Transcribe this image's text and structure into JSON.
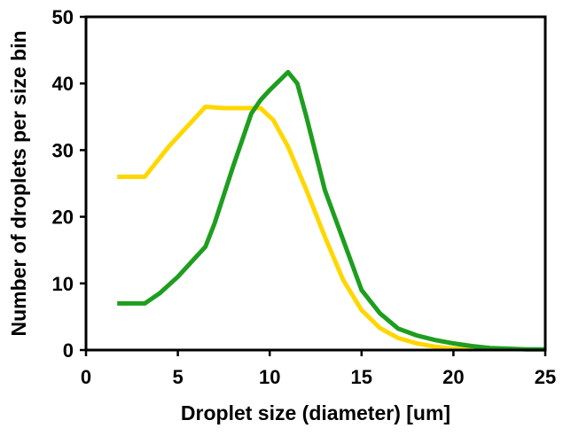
{
  "chart_data": {
    "type": "line",
    "title": "",
    "xlabel": "Droplet size (diameter) [um]",
    "ylabel": "Number of droplets per size bin",
    "xlim": [
      0,
      25
    ],
    "ylim": [
      0,
      50
    ],
    "xticks": [
      0,
      5,
      10,
      15,
      20,
      25
    ],
    "yticks": [
      0,
      10,
      20,
      30,
      40,
      50
    ],
    "grid": false,
    "legend": "none",
    "series": [
      {
        "color": "#FFD700",
        "x": [
          1.7,
          3.2,
          4.5,
          6.5,
          7.5,
          8.5,
          9.5,
          10.2,
          11.0,
          12.0,
          13.0,
          14.0,
          15.0,
          16.0,
          17.0,
          18.0,
          19.0,
          20.0,
          21.0
        ],
        "y": [
          26,
          26,
          30.5,
          36.5,
          36.3,
          36.3,
          36.3,
          34.5,
          30.5,
          24,
          17,
          10.5,
          6,
          3.3,
          1.8,
          1.0,
          0.5,
          0.2,
          0.1
        ]
      },
      {
        "color": "#1E9E1E",
        "x": [
          1.7,
          3.2,
          4.0,
          5.0,
          6.0,
          6.5,
          7.0,
          8.0,
          9.0,
          9.5,
          10.0,
          11.0,
          11.5,
          12.0,
          13.0,
          14.0,
          15.0,
          16.0,
          17.0,
          18.0,
          19.0,
          20.0,
          21.0,
          22.0,
          23.0,
          24.0,
          25.0
        ],
        "y": [
          7,
          7,
          8.5,
          11,
          14,
          15.5,
          19,
          27.5,
          35.5,
          37.5,
          39,
          41.7,
          40,
          35,
          24,
          16.5,
          9,
          5.5,
          3.2,
          2.2,
          1.5,
          1.0,
          0.6,
          0.3,
          0.2,
          0.1,
          0.1
        ]
      }
    ]
  }
}
